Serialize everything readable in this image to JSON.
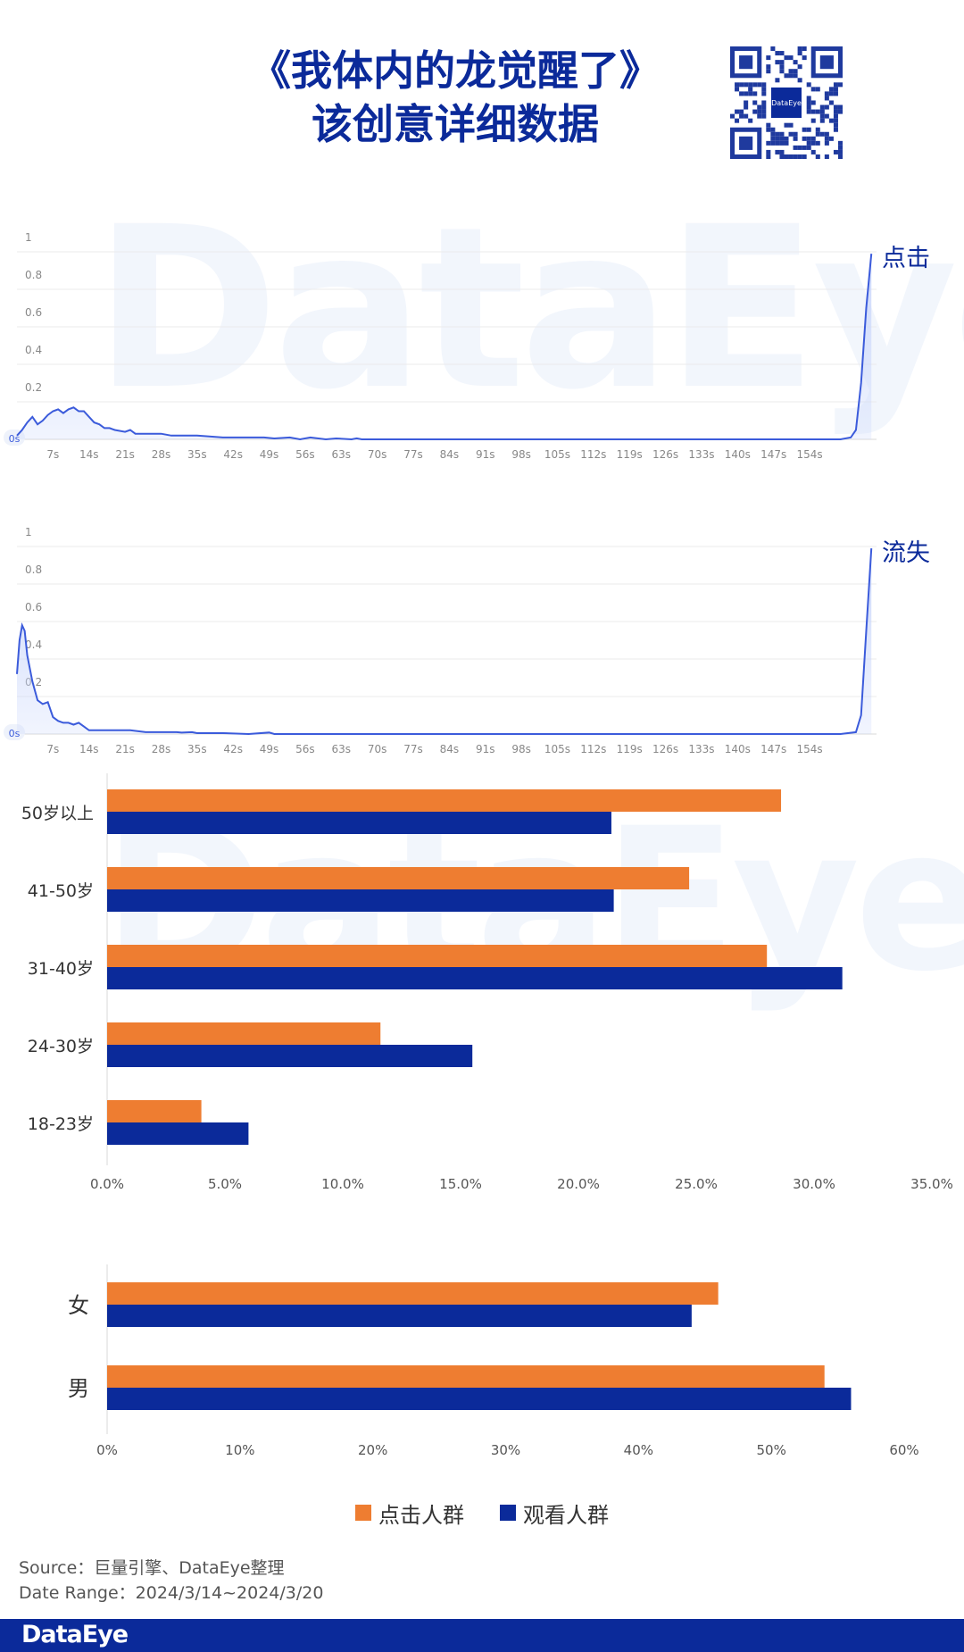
{
  "header": {
    "title_line1": "《我体内的龙觉醒了》",
    "title_line2": "该创意详细数据",
    "qr_label": "DataEye"
  },
  "watermark": "DataEye",
  "colors": {
    "title": "#0b2a9a",
    "line": "#3b5bdb",
    "area": "#c9d6fb",
    "click_bar": "#ee7d31",
    "view_bar": "#0b2a9a"
  },
  "chart_data": [
    {
      "type": "area",
      "series_label": "点击",
      "ylim": [
        0,
        1
      ],
      "yticks": [
        "0s",
        "0.2",
        "0.4",
        "0.6",
        "0.8",
        "1"
      ],
      "xticks": [
        "7s",
        "14s",
        "21s",
        "28s",
        "35s",
        "42s",
        "49s",
        "56s",
        "63s",
        "70s",
        "77s",
        "84s",
        "91s",
        "98s",
        "105s",
        "112s",
        "119s",
        "126s",
        "133s",
        "140s",
        "147s",
        "154s"
      ],
      "xlim": [
        0,
        167
      ],
      "points": [
        [
          0,
          0.02
        ],
        [
          1,
          0.05
        ],
        [
          2,
          0.09
        ],
        [
          3,
          0.12
        ],
        [
          4,
          0.08
        ],
        [
          5,
          0.1
        ],
        [
          6,
          0.13
        ],
        [
          7,
          0.15
        ],
        [
          8,
          0.16
        ],
        [
          9,
          0.14
        ],
        [
          10,
          0.16
        ],
        [
          11,
          0.17
        ],
        [
          12,
          0.15
        ],
        [
          13,
          0.15
        ],
        [
          14,
          0.12
        ],
        [
          15,
          0.09
        ],
        [
          16,
          0.08
        ],
        [
          17,
          0.06
        ],
        [
          18,
          0.06
        ],
        [
          19,
          0.05
        ],
        [
          21,
          0.04
        ],
        [
          22,
          0.05
        ],
        [
          23,
          0.03
        ],
        [
          25,
          0.03
        ],
        [
          28,
          0.03
        ],
        [
          30,
          0.02
        ],
        [
          35,
          0.02
        ],
        [
          40,
          0.01
        ],
        [
          48,
          0.01
        ],
        [
          50,
          0.005
        ],
        [
          53,
          0.01
        ],
        [
          55,
          0.0
        ],
        [
          57,
          0.01
        ],
        [
          60,
          0.0
        ],
        [
          62,
          0.005
        ],
        [
          65,
          0.0
        ],
        [
          66,
          0.005
        ],
        [
          67,
          0.0
        ],
        [
          160,
          0.0
        ],
        [
          162,
          0.01
        ],
        [
          163,
          0.05
        ],
        [
          164,
          0.3
        ],
        [
          165,
          0.7
        ],
        [
          166,
          0.99
        ]
      ]
    },
    {
      "type": "area",
      "series_label": "流失",
      "ylim": [
        0,
        1
      ],
      "yticks": [
        "0s",
        "0.2",
        "0.4",
        "0.6",
        "0.8",
        "1"
      ],
      "xticks": [
        "7s",
        "14s",
        "21s",
        "28s",
        "35s",
        "42s",
        "49s",
        "56s",
        "63s",
        "70s",
        "77s",
        "84s",
        "91s",
        "98s",
        "105s",
        "112s",
        "119s",
        "126s",
        "133s",
        "140s",
        "147s",
        "154s"
      ],
      "xlim": [
        0,
        167
      ],
      "points": [
        [
          0,
          0.32
        ],
        [
          0.5,
          0.5
        ],
        [
          1,
          0.58
        ],
        [
          1.5,
          0.55
        ],
        [
          2,
          0.42
        ],
        [
          3,
          0.28
        ],
        [
          4,
          0.18
        ],
        [
          5,
          0.16
        ],
        [
          6,
          0.17
        ],
        [
          7,
          0.09
        ],
        [
          8,
          0.07
        ],
        [
          9,
          0.06
        ],
        [
          10,
          0.06
        ],
        [
          11,
          0.05
        ],
        [
          12,
          0.06
        ],
        [
          13,
          0.04
        ],
        [
          14,
          0.02
        ],
        [
          15,
          0.02
        ],
        [
          18,
          0.02
        ],
        [
          22,
          0.02
        ],
        [
          25,
          0.01
        ],
        [
          30,
          0.01
        ],
        [
          31,
          0.01
        ],
        [
          32,
          0.008
        ],
        [
          34,
          0.01
        ],
        [
          35,
          0.005
        ],
        [
          40,
          0.005
        ],
        [
          45,
          0.0
        ],
        [
          49,
          0.008
        ],
        [
          50,
          0.0
        ],
        [
          160,
          0.0
        ],
        [
          163,
          0.01
        ],
        [
          164,
          0.1
        ],
        [
          165,
          0.55
        ],
        [
          166,
          0.99
        ]
      ]
    },
    {
      "type": "bar",
      "orientation": "horizontal",
      "categories": [
        "50岁以上",
        "41-50岁",
        "31-40岁",
        "24-30岁",
        "18-23岁"
      ],
      "series": [
        {
          "name": "点击人群",
          "values": [
            28.6,
            24.7,
            28.0,
            11.6,
            4.0
          ]
        },
        {
          "name": "观看人群",
          "values": [
            21.4,
            21.5,
            31.2,
            15.5,
            6.0
          ]
        }
      ],
      "xlim": [
        0,
        35
      ],
      "xticks": [
        "0.0%",
        "5.0%",
        "10.0%",
        "15.0%",
        "20.0%",
        "25.0%",
        "30.0%",
        "35.0%"
      ]
    },
    {
      "type": "bar",
      "orientation": "horizontal",
      "categories": [
        "女",
        "男"
      ],
      "series": [
        {
          "name": "点击人群",
          "values": [
            46,
            54
          ]
        },
        {
          "name": "观看人群",
          "values": [
            44,
            56
          ]
        }
      ],
      "xlim": [
        0,
        60
      ],
      "xticks": [
        "0%",
        "10%",
        "20%",
        "30%",
        "40%",
        "50%",
        "60%"
      ]
    }
  ],
  "legend": [
    {
      "label": "点击人群",
      "color": "#ee7d31"
    },
    {
      "label": "观看人群",
      "color": "#0b2a9a"
    }
  ],
  "source": {
    "line1": "Source：巨量引擎、DataEye整理",
    "line2": "Date Range：2024/3/14~2024/3/20"
  },
  "footer": {
    "logo": "DataEye"
  }
}
